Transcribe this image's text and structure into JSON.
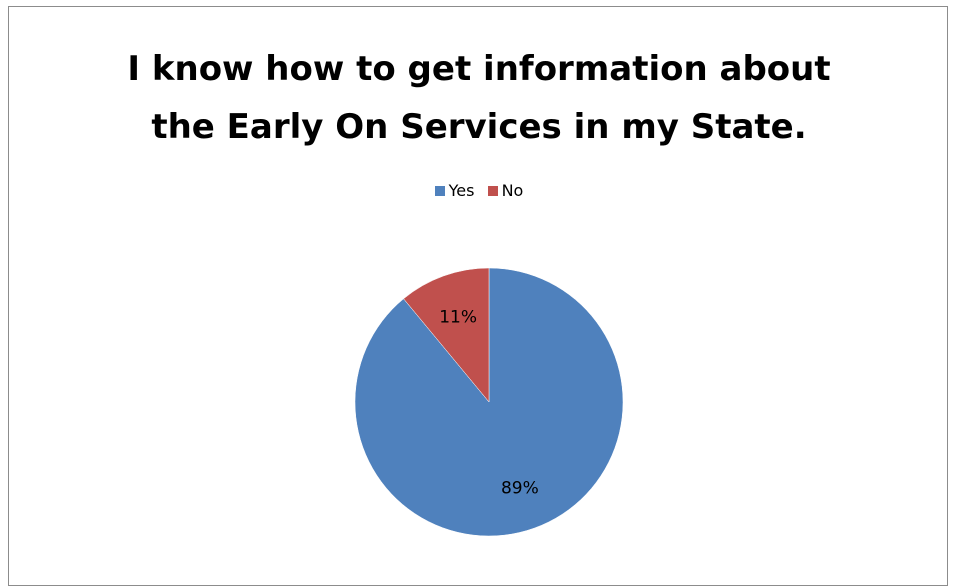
{
  "chart_data": {
    "type": "pie",
    "title_lines": [
      "I know how to get information about",
      "the Early On Services in my State."
    ],
    "legend_position": "top",
    "slices": [
      {
        "label": "Yes",
        "value": 89,
        "display": "89%",
        "color": "#4f81bd"
      },
      {
        "label": "No",
        "value": 11,
        "display": "11%",
        "color": "#c0504d"
      }
    ]
  }
}
